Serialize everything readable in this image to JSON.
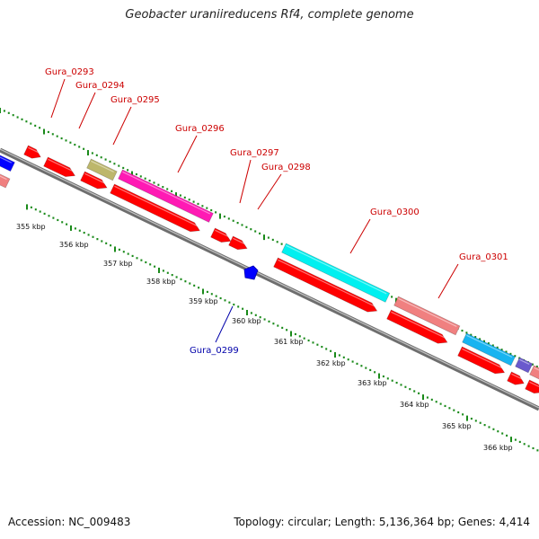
{
  "title": "Geobacter uraniireducens Rf4, complete genome",
  "footer": {
    "accession": "Accession: NC_009483",
    "topology": "Topology: circular; Length: 5,136,364 bp; Genes: 4,414"
  },
  "colors": {
    "backbone": "#8a8a8a",
    "ticks": "#1a8a1a",
    "gene_label": "#cc0000",
    "reverse_label": "#0000aa",
    "cds_forward": "#ff0000",
    "cds_reverse": "#ff0000",
    "magenta": "#ff1ab4",
    "cyan": "#00f0f0",
    "salmon": "#f08080",
    "olive": "#bdb76b",
    "sky": "#18b4f0",
    "blue": "#0000ff",
    "purple": "#6a5acd"
  },
  "kbp_labels": [
    "355 kbp",
    "356 kbp",
    "357 kbp",
    "358 kbp",
    "359 kbp",
    "360 kbp",
    "361 kbp",
    "362 kbp",
    "363 kbp",
    "364 kbp",
    "365 kbp",
    "366 kbp"
  ],
  "gene_labels": [
    {
      "text": "Gura_0293",
      "strand": "forward"
    },
    {
      "text": "Gura_0294",
      "strand": "forward"
    },
    {
      "text": "Gura_0295",
      "strand": "forward"
    },
    {
      "text": "Gura_0296",
      "strand": "forward"
    },
    {
      "text": "Gura_0297",
      "strand": "forward"
    },
    {
      "text": "Gura_0298",
      "strand": "forward"
    },
    {
      "text": "Gura_0299",
      "strand": "reverse"
    },
    {
      "text": "Gura_0300",
      "strand": "forward"
    },
    {
      "text": "Gura_0301",
      "strand": "forward"
    }
  ]
}
